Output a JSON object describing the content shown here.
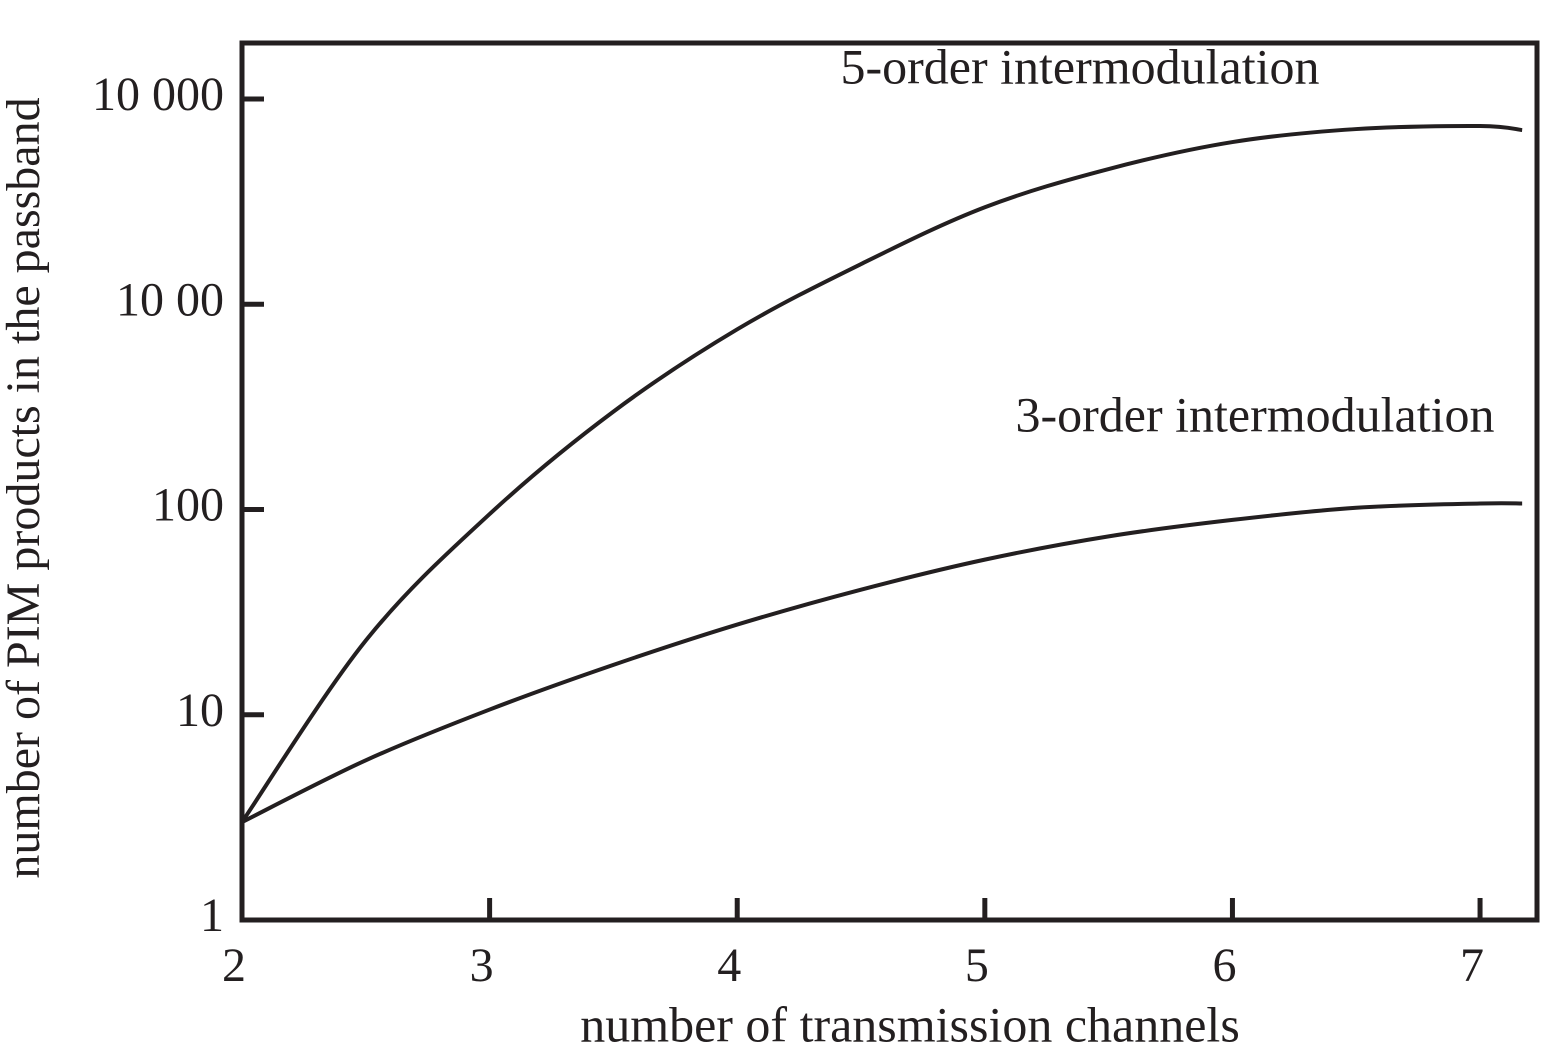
{
  "chart_data": {
    "type": "line",
    "xlabel": "number of transmission channels",
    "ylabel": "number of PIM products in the passband",
    "x": [
      2,
      2.5,
      3,
      3.5,
      4,
      4.5,
      5,
      5.5,
      6,
      6.5,
      7,
      7.17
    ],
    "series": [
      {
        "name": "5-order intermodulation",
        "color": "#231f20",
        "values": [
          3.0,
          23,
          95,
          300,
          755,
          1570,
          2970,
          4560,
          6170,
          7140,
          7390,
          7060
        ]
      },
      {
        "name": "3-order intermodulation",
        "color": "#231f20",
        "values": [
          3.0,
          6.0,
          10.6,
          17.5,
          27.5,
          40.7,
          57,
          74,
          89,
          102,
          107,
          107
        ]
      }
    ],
    "xlim": [
      2,
      7.23
    ],
    "xticks": [
      2,
      3,
      4,
      5,
      6,
      7
    ],
    "ylim": [
      1,
      18750
    ],
    "yticks": [
      1,
      10,
      100,
      {
        "value": 1000,
        "label": "10 00"
      },
      {
        "value": 10000,
        "label": "10 000"
      }
    ],
    "log_y": true,
    "grid": false
  }
}
